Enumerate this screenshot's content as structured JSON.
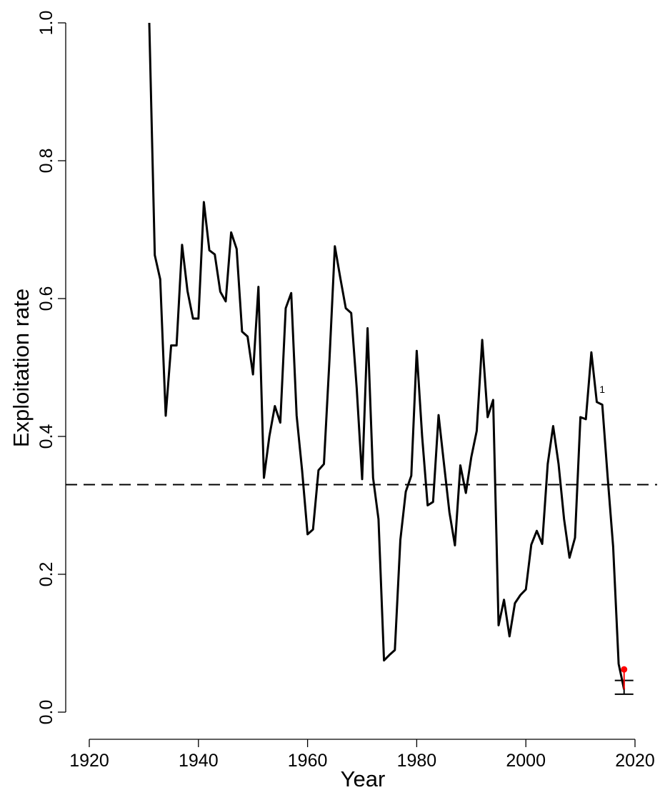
{
  "chart_data": {
    "type": "line",
    "title": "",
    "xlabel": "Year",
    "ylabel": "Exploitation rate",
    "xlim": [
      1920,
      2020
    ],
    "ylim": [
      0,
      1
    ],
    "xticks": [
      "1920",
      "1940",
      "1960",
      "1980",
      "2000",
      "2020"
    ],
    "yticks": [
      "0.0",
      "0.2",
      "0.4",
      "0.6",
      "0.8",
      "1.0"
    ],
    "grid": false,
    "series": [
      {
        "color": "#000000",
        "x": [
          1931,
          1932,
          1933,
          1934,
          1935,
          1936,
          1937,
          1938,
          1939,
          1940,
          1941,
          1942,
          1943,
          1944,
          1945,
          1946,
          1947,
          1948,
          1949,
          1950,
          1951,
          1952,
          1953,
          1954,
          1955,
          1956,
          1957,
          1958,
          1959,
          1960,
          1961,
          1962,
          1963,
          1964,
          1965,
          1966,
          1967,
          1968,
          1969,
          1970,
          1971,
          1972,
          1973,
          1974,
          1975,
          1976,
          1977,
          1978,
          1979,
          1980,
          1981,
          1982,
          1983,
          1984,
          1985,
          1986,
          1987,
          1988,
          1989,
          1990,
          1991,
          1992,
          1993,
          1994,
          1995,
          1996,
          1997,
          1998,
          1999,
          2000,
          2001,
          2002,
          2003,
          2004,
          2005,
          2006,
          2007,
          2008,
          2009,
          2010,
          2011,
          2012,
          2013,
          2014,
          2015,
          2016,
          2017,
          2018
        ],
        "y": [
          1.0,
          0.663,
          0.628,
          0.43,
          0.532,
          0.532,
          0.678,
          0.611,
          0.571,
          0.571,
          0.74,
          0.67,
          0.664,
          0.61,
          0.596,
          0.696,
          0.672,
          0.552,
          0.545,
          0.49,
          0.617,
          0.34,
          0.4,
          0.444,
          0.42,
          0.586,
          0.608,
          0.43,
          0.35,
          0.258,
          0.265,
          0.351,
          0.36,
          0.51,
          0.676,
          0.63,
          0.586,
          0.579,
          0.47,
          0.338,
          0.557,
          0.34,
          0.28,
          0.075,
          0.083,
          0.09,
          0.25,
          0.32,
          0.343,
          0.524,
          0.4,
          0.3,
          0.305,
          0.431,
          0.36,
          0.29,
          0.242,
          0.358,
          0.318,
          0.37,
          0.408,
          0.54,
          0.428,
          0.453,
          0.126,
          0.163,
          0.11,
          0.158,
          0.17,
          0.178,
          0.243,
          0.263,
          0.244,
          0.36,
          0.415,
          0.36,
          0.28,
          0.224,
          0.253,
          0.428,
          0.425,
          0.522,
          0.45,
          0.446,
          0.34,
          0.24,
          0.07,
          0.033
        ]
      }
    ],
    "reference_line": {
      "y": 0.33,
      "style": "dashed",
      "color": "#000000"
    },
    "error_bar": {
      "x": 2018,
      "low": 0.026,
      "high": 0.046,
      "color": "#000000"
    },
    "highlight_point": {
      "x": 2018,
      "y": 0.062,
      "color": "#ff0000"
    },
    "annotation": {
      "text": "1",
      "x": 2014,
      "y": 0.463
    }
  }
}
